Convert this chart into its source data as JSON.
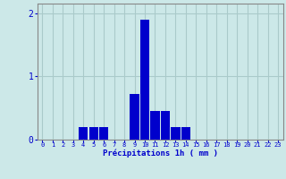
{
  "hours": [
    0,
    1,
    2,
    3,
    4,
    5,
    6,
    7,
    8,
    9,
    10,
    11,
    12,
    13,
    14,
    15,
    16,
    17,
    18,
    19,
    20,
    21,
    22,
    23
  ],
  "values": [
    0,
    0,
    0,
    0,
    0.2,
    0.2,
    0.2,
    0,
    0,
    0.72,
    1.9,
    0.45,
    0.45,
    0.2,
    0.2,
    0,
    0,
    0,
    0,
    0,
    0,
    0,
    0,
    0
  ],
  "bar_color": "#0000cc",
  "background_color": "#cce8e8",
  "grid_color": "#aacaca",
  "xlabel": "Précipitations 1h ( mm )",
  "xlabel_color": "#0000cc",
  "tick_color": "#0000cc",
  "ylim": [
    0,
    2.15
  ],
  "yticks": [
    0,
    1,
    2
  ],
  "bar_width": 0.9
}
